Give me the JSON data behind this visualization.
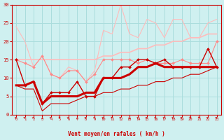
{
  "xlabel": "Vent moyen/en rafales ( km/h )",
  "bg_color": "#cff0f0",
  "grid_color": "#aadddd",
  "xlim": [
    -0.5,
    23.5
  ],
  "ylim": [
    0,
    30
  ],
  "yticks": [
    0,
    5,
    10,
    15,
    20,
    25,
    30
  ],
  "xticks": [
    0,
    1,
    2,
    3,
    4,
    5,
    6,
    7,
    8,
    9,
    10,
    11,
    12,
    13,
    14,
    15,
    16,
    17,
    18,
    19,
    20,
    21,
    22,
    23
  ],
  "line_rafales_max_x": [
    0,
    1,
    2,
    3,
    4,
    5,
    6,
    7,
    8,
    9,
    10,
    11,
    12,
    13,
    14,
    15,
    16,
    17,
    18,
    19,
    20,
    21,
    22,
    23
  ],
  "line_rafales_max_y": [
    24,
    20,
    13,
    16,
    11,
    10,
    13,
    12,
    9,
    12,
    23,
    22,
    30,
    22,
    21,
    26,
    25,
    21,
    26,
    26,
    21,
    21,
    25,
    26
  ],
  "line_rafales_trend_x": [
    0,
    1,
    2,
    3,
    4,
    5,
    6,
    7,
    8,
    9,
    10,
    11,
    12,
    13,
    14,
    15,
    16,
    17,
    18,
    19,
    20,
    21,
    22,
    23
  ],
  "line_rafales_trend_y": [
    15,
    15,
    15,
    15,
    15,
    15,
    15,
    15,
    15,
    15,
    16,
    16,
    17,
    17,
    18,
    18,
    19,
    19,
    20,
    20,
    21,
    21,
    22,
    22
  ],
  "line_pink_wavy_x": [
    0,
    1,
    2,
    3,
    4,
    5,
    6,
    7,
    8,
    9,
    10,
    11,
    12,
    13,
    14,
    15,
    16,
    17,
    18,
    19,
    20,
    21,
    22,
    23
  ],
  "line_pink_wavy_y": [
    15,
    14,
    13,
    16,
    11,
    10,
    12,
    12,
    9,
    11,
    15,
    15,
    15,
    15,
    14,
    15,
    14,
    14,
    14,
    15,
    14,
    14,
    14,
    20
  ],
  "line_dark_markers_x": [
    0,
    1,
    2,
    3,
    4,
    5,
    6,
    7,
    8,
    9,
    10,
    11,
    12,
    13,
    14,
    15,
    16,
    17,
    18,
    19,
    20,
    21,
    22,
    23
  ],
  "line_dark_markers_y": [
    15,
    8,
    9,
    3,
    6,
    6,
    6,
    9,
    5,
    5,
    10,
    10,
    13,
    13,
    15,
    15,
    14,
    15,
    13,
    13,
    13,
    13,
    18,
    13
  ],
  "line_thick_x": [
    0,
    1,
    2,
    3,
    4,
    5,
    6,
    7,
    8,
    9,
    10,
    11,
    12,
    13,
    14,
    15,
    16,
    17,
    18,
    19,
    20,
    21,
    22,
    23
  ],
  "line_thick_y": [
    8,
    8,
    9,
    3,
    5,
    5,
    5,
    5,
    6,
    6,
    10,
    10,
    10,
    11,
    13,
    13,
    14,
    13,
    13,
    13,
    13,
    13,
    13,
    13
  ],
  "line_lower_x": [
    0,
    1,
    2,
    3,
    4,
    5,
    6,
    7,
    8,
    9,
    10,
    11,
    12,
    13,
    14,
    15,
    16,
    17,
    18,
    19,
    20,
    21,
    22,
    23
  ],
  "line_lower_y": [
    8,
    7,
    7,
    1,
    3,
    3,
    3,
    4,
    5,
    5,
    6,
    6,
    7,
    7,
    8,
    8,
    9,
    9,
    10,
    10,
    11,
    11,
    12,
    13
  ],
  "color_light_pink": "#ffbbbb",
  "color_medium_pink": "#ff8888",
  "color_dark_red": "#cc0000",
  "color_spine": "#cc0000",
  "arrow_color": "#cc0000"
}
